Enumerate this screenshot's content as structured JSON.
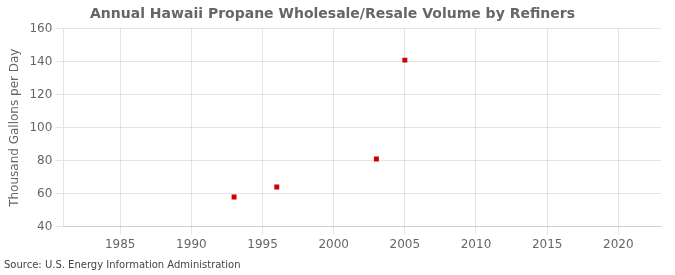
{
  "chart_data": {
    "type": "scatter",
    "title": "Annual Hawaii Propane Wholesale/Resale Volume by Refiners",
    "ylabel": "Thousand Gallons per Day",
    "source": "Source: U.S. Energy Information Administration",
    "x": [
      1993,
      1996,
      2003,
      2005
    ],
    "values": [
      58.0,
      64.0,
      81.0,
      141.0
    ],
    "color": "#cc0000",
    "marker": "square",
    "xlim": [
      1981,
      2023
    ],
    "ylim": [
      40,
      160
    ],
    "xticks": [
      1985,
      1990,
      1995,
      2000,
      2005,
      2010,
      2015,
      2020
    ],
    "yticks": [
      40,
      60,
      80,
      100,
      120,
      140,
      160
    ],
    "grid": true
  }
}
